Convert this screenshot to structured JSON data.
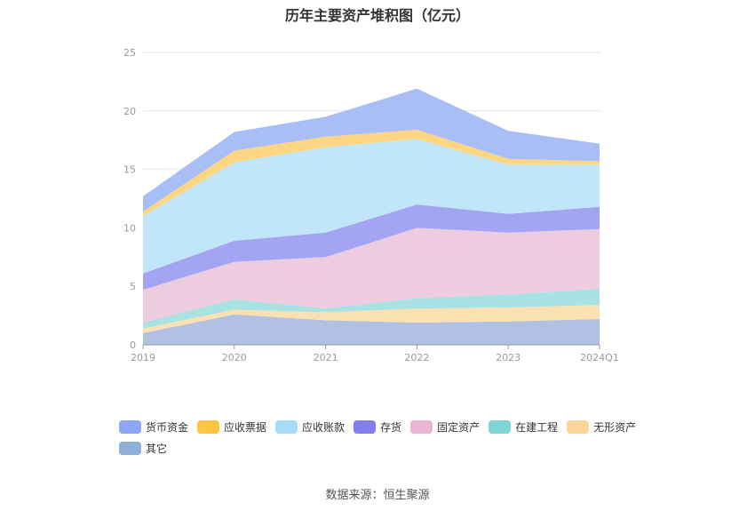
{
  "chart_data": {
    "type": "area",
    "stacked": true,
    "title": "历年主要资产堆积图（亿元）",
    "categories": [
      "2019",
      "2020",
      "2021",
      "2022",
      "2023",
      "2024Q1"
    ],
    "ylim": [
      0,
      25
    ],
    "yticks": [
      0,
      5,
      10,
      15,
      20,
      25
    ],
    "series": [
      {
        "name": "其它",
        "color": "#b0c1e3",
        "legend_color": "#8faed9",
        "values": [
          1.0,
          2.6,
          2.1,
          1.9,
          2.0,
          2.2
        ]
      },
      {
        "name": "无形资产",
        "color": "#fbe0b2",
        "legend_color": "#fdd59a",
        "values": [
          0.4,
          0.4,
          0.7,
          1.2,
          1.2,
          1.2
        ]
      },
      {
        "name": "在建工程",
        "color": "#a8e2e2",
        "legend_color": "#80d4d6",
        "values": [
          0.5,
          0.9,
          0.3,
          0.9,
          1.1,
          1.4
        ]
      },
      {
        "name": "固定资产",
        "color": "#eeccdf",
        "legend_color": "#e8b6d4",
        "values": [
          2.8,
          3.2,
          4.4,
          6.0,
          5.3,
          5.1
        ]
      },
      {
        "name": "存货",
        "color": "#a4a4f5",
        "legend_color": "#7f80ee",
        "values": [
          1.4,
          1.8,
          2.1,
          2.0,
          1.6,
          1.9
        ]
      },
      {
        "name": "应收账款",
        "color": "#c2e6f9",
        "legend_color": "#a7dcf8",
        "values": [
          4.9,
          6.7,
          7.3,
          5.6,
          4.2,
          3.6
        ]
      },
      {
        "name": "应收票据",
        "color": "#fdd683",
        "legend_color": "#fcc542",
        "values": [
          0.4,
          1.0,
          0.9,
          0.8,
          0.5,
          0.3
        ]
      },
      {
        "name": "货币资金",
        "color": "#a9bdf7",
        "legend_color": "#8ea6f6",
        "values": [
          1.3,
          1.6,
          1.7,
          3.5,
          2.4,
          1.5
        ]
      }
    ],
    "legend_order": [
      "货币资金",
      "应收票据",
      "应收账款",
      "存货",
      "固定资产",
      "在建工程",
      "无形资产",
      "其它"
    ],
    "legend_position": "bottom",
    "grid": true
  },
  "source": "数据来源：恒生聚源"
}
